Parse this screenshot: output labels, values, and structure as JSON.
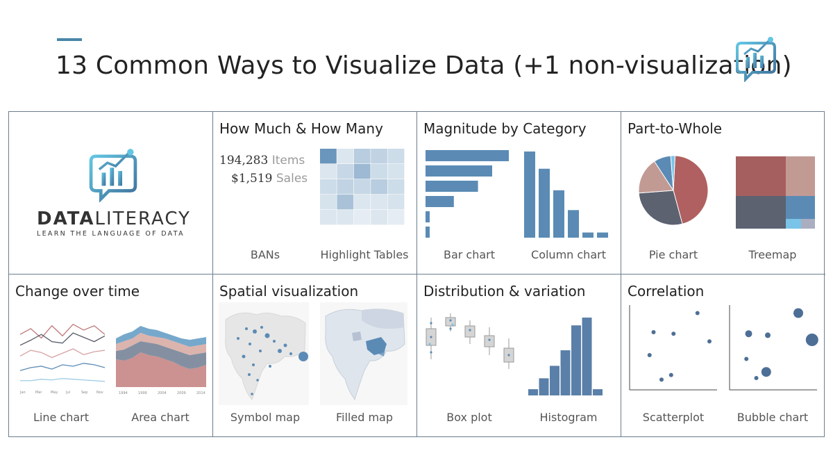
{
  "title": "13 Common Ways to Visualize Data (+1 non-visualization)",
  "brand": {
    "word_bold": "DATA",
    "word_light": "LITERACY",
    "tagline": "LEARN THE LANGUAGE OF DATA"
  },
  "colors": {
    "accent": "#4a86a8",
    "bar_blue": "#5b8bb5",
    "border": "#6b7d8e",
    "pie_red": "#b06060",
    "pie_slate": "#5c6270",
    "pie_rose": "#c29a94",
    "pie_blue": "#5b8bb5",
    "pie_light_blue": "#79c4e8"
  },
  "cells": [
    {
      "title": "How Much & How Many",
      "captions": [
        "BANs",
        "Highlight Tables"
      ]
    },
    {
      "title": "Magnitude by Category",
      "captions": [
        "Bar chart",
        "Column chart"
      ]
    },
    {
      "title": "Part-to-Whole",
      "captions": [
        "Pie chart",
        "Treemap"
      ]
    },
    {
      "title": "Change over time",
      "captions": [
        "Line chart",
        "Area chart"
      ]
    },
    {
      "title": "Spatial visualization",
      "captions": [
        "Symbol map",
        "Filled map"
      ]
    },
    {
      "title": "Distribution & variation",
      "captions": [
        "Box plot",
        "Histogram"
      ]
    },
    {
      "title": "Correlation",
      "captions": [
        "Scatterplot",
        "Bubble chart"
      ]
    }
  ],
  "bans": [
    {
      "value": "194,283",
      "label": "Items"
    },
    {
      "value": "$1,519",
      "label": "Sales"
    }
  ],
  "line_chart_ticks": [
    "Jan",
    "Mar",
    "May",
    "Jul",
    "Sep",
    "Nov"
  ],
  "area_chart_ticks": [
    "1994",
    "1999",
    "2004",
    "2009",
    "2014"
  ],
  "chart_data": [
    {
      "type": "table",
      "name_hint": "highlight-table",
      "rows": 5,
      "cols": 5,
      "intensity": [
        [
          0.9,
          0.1,
          0.35,
          0.3,
          0.2
        ],
        [
          0.1,
          0.25,
          0.55,
          0.2,
          0.15
        ],
        [
          0.2,
          0.3,
          0.25,
          0.35,
          0.2
        ],
        [
          0.15,
          0.45,
          0.1,
          0.1,
          0.15
        ],
        [
          0.1,
          0.1,
          0.05,
          0.1,
          0.05
        ]
      ]
    },
    {
      "type": "bar",
      "orientation": "horizontal",
      "values": [
        100,
        80,
        63,
        34,
        5,
        5
      ]
    },
    {
      "type": "bar",
      "orientation": "vertical",
      "values": [
        100,
        80,
        55,
        32,
        6,
        6
      ]
    },
    {
      "type": "pie",
      "values": [
        45,
        28,
        17,
        8,
        2
      ],
      "colors": [
        "#b06060",
        "#5c6270",
        "#c29a94",
        "#5b8bb5",
        "#79c4e8"
      ]
    },
    {
      "type": "line",
      "series": [
        {
          "color": "#c07878",
          "values": [
            70,
            78,
            65,
            82,
            68,
            84,
            76,
            82,
            70
          ]
        },
        {
          "color": "#555a66",
          "values": [
            55,
            62,
            70,
            60,
            58,
            72,
            66,
            60,
            68
          ]
        },
        {
          "color": "#d6a3a3",
          "values": [
            40,
            48,
            45,
            38,
            44,
            50,
            42,
            46,
            48
          ]
        },
        {
          "color": "#5b8bb5",
          "values": [
            20,
            24,
            26,
            22,
            28,
            26,
            30,
            28,
            24
          ]
        },
        {
          "color": "#9fcbe6",
          "values": [
            6,
            6,
            8,
            7,
            9,
            8,
            7,
            6,
            5
          ]
        }
      ]
    },
    {
      "type": "area"
    },
    {
      "type": "scatter",
      "points": [
        [
          30,
          70
        ],
        [
          55,
          68
        ],
        [
          25,
          40
        ],
        [
          40,
          8
        ],
        [
          52,
          14
        ],
        [
          85,
          95
        ],
        [
          100,
          58
        ]
      ]
    },
    {
      "type": "scatter",
      "subtype": "bubble",
      "points": [
        [
          25,
          68,
          5
        ],
        [
          50,
          66,
          4
        ],
        [
          22,
          35,
          3
        ],
        [
          35,
          10,
          3
        ],
        [
          48,
          18,
          7
        ],
        [
          90,
          95,
          7
        ],
        [
          108,
          60,
          9
        ]
      ]
    }
  ]
}
